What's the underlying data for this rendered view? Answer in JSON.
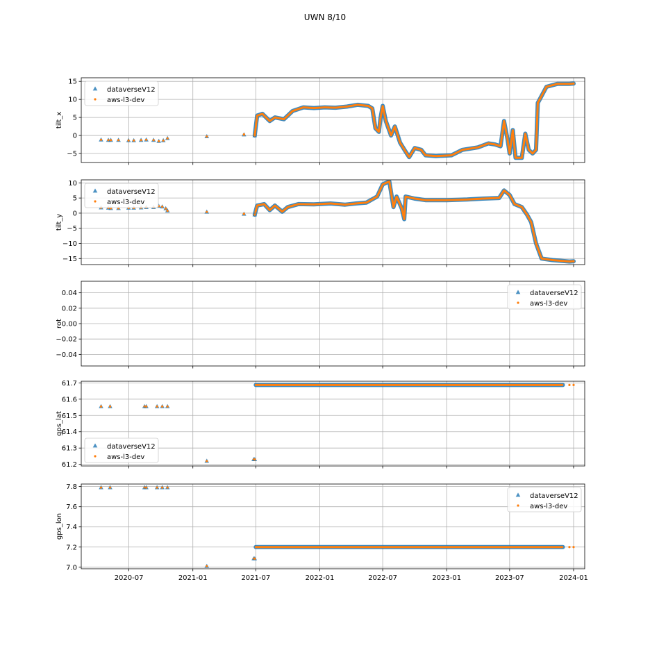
{
  "figure": {
    "title": "UWN 8/10"
  },
  "chart_data": {
    "type": "scatter",
    "x_axis": {
      "scale": "date",
      "range": [
        "2020-02-15",
        "2024-02-02"
      ],
      "ticks": [
        {
          "value": "2020-07-01",
          "label": "2020-07"
        },
        {
          "value": "2021-01-01",
          "label": "2021-01"
        },
        {
          "value": "2021-07-01",
          "label": "2021-07"
        },
        {
          "value": "2022-01-01",
          "label": "2022-01"
        },
        {
          "value": "2022-07-01",
          "label": "2022-07"
        },
        {
          "value": "2023-01-01",
          "label": "2023-01"
        },
        {
          "value": "2023-07-01",
          "label": "2023-07"
        },
        {
          "value": "2024-01-01",
          "label": "2024-01"
        }
      ]
    },
    "grid": true,
    "legend_entries": [
      {
        "name": "dataverseV12",
        "marker": "triangle",
        "color": "#1f77b4"
      },
      {
        "name": "aws-l3-dev",
        "marker": "dot",
        "color": "#ff7f0e"
      }
    ],
    "panels": [
      {
        "id": "tilt_x",
        "ylabel": "tilt_x",
        "ylim": [
          -7.5,
          16
        ],
        "yticks": [
          -5,
          0,
          5,
          10,
          15
        ],
        "ytick_labels": [
          "−5",
          "0",
          "5",
          "10",
          "15"
        ],
        "legend": "upper-left",
        "series": [
          {
            "name": "dataverseV12",
            "points": [
              [
                "2020-04-12",
                -1.2
              ],
              [
                "2020-05-03",
                -1.3
              ],
              [
                "2020-05-10",
                -1.3
              ],
              [
                "2020-06-01",
                -1.3
              ],
              [
                "2020-06-30",
                -1.4
              ],
              [
                "2020-07-15",
                -1.4
              ],
              [
                "2020-08-05",
                -1.3
              ],
              [
                "2020-08-20",
                -1.2
              ],
              [
                "2020-09-10",
                -1.3
              ],
              [
                "2020-09-25",
                -1.6
              ],
              [
                "2020-10-08",
                -1.4
              ],
              [
                "2020-10-20",
                -0.8
              ],
              [
                "2021-02-10",
                -0.3
              ],
              [
                "2021-05-28",
                0.2
              ],
              [
                "2021-06-28",
                0.0
              ]
            ]
          },
          {
            "name": "aws-l3-dev",
            "points": [
              [
                "2021-05-28",
                0.3
              ],
              [
                "2021-06-28",
                0.4
              ],
              [
                "2023-09-20",
                9.0
              ],
              [
                "2023-10-15",
                13.5
              ],
              [
                "2023-11-15",
                14.3
              ],
              [
                "2023-12-20",
                14.3
              ],
              [
                "2024-01-01",
                14.4
              ]
            ]
          }
        ],
        "lines": [
          [
            [
              "2021-06-28",
              0.0
            ],
            [
              "2021-07-05",
              5.5
            ],
            [
              "2021-07-20",
              6.0
            ],
            [
              "2021-08-10",
              4.0
            ],
            [
              "2021-08-25",
              5.0
            ],
            [
              "2021-09-20",
              4.5
            ],
            [
              "2021-10-15",
              6.8
            ],
            [
              "2021-11-15",
              7.8
            ],
            [
              "2021-12-15",
              7.6
            ],
            [
              "2022-01-15",
              7.8
            ],
            [
              "2022-02-15",
              7.7
            ],
            [
              "2022-03-20",
              8.0
            ],
            [
              "2022-04-20",
              8.5
            ],
            [
              "2022-05-20",
              8.2
            ],
            [
              "2022-06-01",
              7.5
            ],
            [
              "2022-06-10",
              2.0
            ],
            [
              "2022-06-20",
              1.0
            ],
            [
              "2022-06-25",
              5.0
            ],
            [
              "2022-07-01",
              8.2
            ],
            [
              "2022-07-10",
              4.0
            ],
            [
              "2022-07-25",
              0.0
            ],
            [
              "2022-08-05",
              2.5
            ],
            [
              "2022-08-20",
              -2.0
            ],
            [
              "2022-09-05",
              -4.5
            ],
            [
              "2022-09-15",
              -6.0
            ],
            [
              "2022-10-01",
              -3.5
            ],
            [
              "2022-10-20",
              -4.0
            ],
            [
              "2022-11-01",
              -5.5
            ],
            [
              "2022-12-01",
              -5.7
            ],
            [
              "2023-01-15",
              -5.5
            ],
            [
              "2023-02-15",
              -4.0
            ],
            [
              "2023-04-01",
              -3.3
            ],
            [
              "2023-05-01",
              -2.2
            ],
            [
              "2023-05-20",
              -2.5
            ],
            [
              "2023-06-05",
              -3.0
            ],
            [
              "2023-06-15",
              4.0
            ],
            [
              "2023-06-25",
              -1.0
            ],
            [
              "2023-07-01",
              -5.0
            ],
            [
              "2023-07-10",
              1.5
            ],
            [
              "2023-07-18",
              -6.2
            ],
            [
              "2023-08-05",
              -6.2
            ],
            [
              "2023-08-15",
              0.5
            ],
            [
              "2023-08-25",
              -4.0
            ],
            [
              "2023-09-05",
              -5.0
            ],
            [
              "2023-09-15",
              -4.0
            ],
            [
              "2023-09-20",
              9.0
            ],
            [
              "2023-10-15",
              13.5
            ],
            [
              "2023-11-15",
              14.3
            ],
            [
              "2023-12-20",
              14.3
            ],
            [
              "2024-01-01",
              14.4
            ]
          ]
        ]
      },
      {
        "id": "tilt_y",
        "ylabel": "tilt_y",
        "ylim": [
          -17,
          11
        ],
        "yticks": [
          -15,
          -10,
          -5,
          0,
          5,
          10
        ],
        "ytick_labels": [
          "−15",
          "−10",
          "−5",
          "0",
          "5",
          "10"
        ],
        "legend": "upper-left",
        "series": [
          {
            "name": "dataverseV12",
            "points": [
              [
                "2020-04-12",
                1.8
              ],
              [
                "2020-05-03",
                1.7
              ],
              [
                "2020-05-10",
                1.6
              ],
              [
                "2020-06-01",
                1.6
              ],
              [
                "2020-06-30",
                1.7
              ],
              [
                "2020-07-15",
                1.7
              ],
              [
                "2020-08-05",
                1.8
              ],
              [
                "2020-08-20",
                1.9
              ],
              [
                "2020-09-10",
                1.9
              ],
              [
                "2020-09-25",
                2.3
              ],
              [
                "2020-10-05",
                2.1
              ],
              [
                "2020-10-15",
                1.5
              ],
              [
                "2020-10-20",
                0.8
              ],
              [
                "2021-02-10",
                0.4
              ],
              [
                "2021-05-28",
                -0.3
              ],
              [
                "2021-06-28",
                -0.5
              ]
            ]
          },
          {
            "name": "aws-l3-dev",
            "points": [
              [
                "2021-05-28",
                -0.2
              ],
              [
                "2024-01-01",
                -15.9
              ]
            ]
          }
        ],
        "lines": [
          [
            [
              "2021-06-28",
              -0.5
            ],
            [
              "2021-07-05",
              2.5
            ],
            [
              "2021-07-25",
              3.0
            ],
            [
              "2021-08-10",
              1.0
            ],
            [
              "2021-08-25",
              2.5
            ],
            [
              "2021-09-15",
              0.5
            ],
            [
              "2021-10-01",
              2.0
            ],
            [
              "2021-11-01",
              3.0
            ],
            [
              "2021-12-15",
              2.9
            ],
            [
              "2022-02-01",
              3.2
            ],
            [
              "2022-03-15",
              2.8
            ],
            [
              "2022-04-15",
              3.2
            ],
            [
              "2022-05-15",
              3.5
            ],
            [
              "2022-06-15",
              5.5
            ],
            [
              "2022-07-01",
              9.5
            ],
            [
              "2022-07-20",
              10.5
            ],
            [
              "2022-08-01",
              2.0
            ],
            [
              "2022-08-10",
              5.5
            ],
            [
              "2022-08-25",
              1.5
            ],
            [
              "2022-09-01",
              -2.0
            ],
            [
              "2022-09-05",
              5.5
            ],
            [
              "2022-10-01",
              4.8
            ],
            [
              "2022-11-01",
              4.3
            ],
            [
              "2023-01-01",
              4.3
            ],
            [
              "2023-03-01",
              4.5
            ],
            [
              "2023-04-15",
              4.8
            ],
            [
              "2023-06-01",
              5.0
            ],
            [
              "2023-06-15",
              7.5
            ],
            [
              "2023-07-01",
              6.0
            ],
            [
              "2023-07-15",
              3.0
            ],
            [
              "2023-08-05",
              2.0
            ],
            [
              "2023-08-20",
              -0.5
            ],
            [
              "2023-09-01",
              -3.0
            ],
            [
              "2023-09-15",
              -10.0
            ],
            [
              "2023-10-01",
              -15.0
            ],
            [
              "2023-11-01",
              -15.5
            ],
            [
              "2023-12-20",
              -16.0
            ],
            [
              "2024-01-01",
              -15.9
            ]
          ]
        ]
      },
      {
        "id": "rot",
        "ylabel": "rot",
        "ylim": [
          -0.055,
          0.055
        ],
        "yticks": [
          -0.04,
          -0.02,
          0.0,
          0.02,
          0.04
        ],
        "ytick_labels": [
          "−0.04",
          "−0.02",
          "0.00",
          "0.02",
          "0.04"
        ],
        "legend": "upper-right",
        "series": [
          {
            "name": "dataverseV12",
            "points": []
          },
          {
            "name": "aws-l3-dev",
            "points": []
          }
        ],
        "lines": []
      },
      {
        "id": "gps_lat",
        "ylabel": "gps_lat",
        "ylim": [
          61.19,
          61.71
        ],
        "yticks": [
          61.2,
          61.3,
          61.4,
          61.5,
          61.6,
          61.7
        ],
        "ytick_labels": [
          "61.2",
          "61.3",
          "61.4",
          "61.5",
          "61.6",
          "61.7"
        ],
        "legend": "lower-left",
        "series": [
          {
            "name": "dataverseV12",
            "points": [
              [
                "2020-04-12",
                61.555
              ],
              [
                "2020-05-08",
                61.555
              ],
              [
                "2020-08-15",
                61.555
              ],
              [
                "2020-08-20",
                61.555
              ],
              [
                "2020-09-20",
                61.555
              ],
              [
                "2020-10-05",
                61.555
              ],
              [
                "2020-10-20",
                61.555
              ],
              [
                "2021-02-10",
                61.22
              ],
              [
                "2021-06-25",
                61.23
              ],
              [
                "2021-06-28",
                61.23
              ]
            ]
          },
          {
            "name": "aws-l3-dev",
            "points": [
              [
                "2023-12-20",
                61.687
              ],
              [
                "2024-01-01",
                61.687
              ]
            ]
          }
        ],
        "lines": [
          [
            [
              "2021-07-01",
              61.687
            ],
            [
              "2023-12-01",
              61.687
            ]
          ]
        ]
      },
      {
        "id": "gps_lon",
        "ylabel": "gps_lon",
        "ylim": [
          6.985,
          7.825
        ],
        "yticks": [
          7.0,
          7.2,
          7.4,
          7.6,
          7.8
        ],
        "ytick_labels": [
          "7.0",
          "7.2",
          "7.4",
          "7.6",
          "7.8"
        ],
        "legend": "upper-right",
        "series": [
          {
            "name": "dataverseV12",
            "points": [
              [
                "2020-04-12",
                7.79
              ],
              [
                "2020-05-08",
                7.79
              ],
              [
                "2020-08-15",
                7.79
              ],
              [
                "2020-08-20",
                7.79
              ],
              [
                "2020-09-20",
                7.79
              ],
              [
                "2020-10-05",
                7.79
              ],
              [
                "2020-10-20",
                7.79
              ],
              [
                "2021-02-10",
                7.01
              ],
              [
                "2021-06-25",
                7.085
              ],
              [
                "2021-06-28",
                7.085
              ]
            ]
          },
          {
            "name": "aws-l3-dev",
            "points": [
              [
                "2023-12-20",
                7.2
              ],
              [
                "2024-01-01",
                7.2
              ]
            ]
          }
        ],
        "lines": [
          [
            [
              "2021-07-01",
              7.2
            ],
            [
              "2023-12-01",
              7.2
            ]
          ]
        ]
      }
    ]
  }
}
